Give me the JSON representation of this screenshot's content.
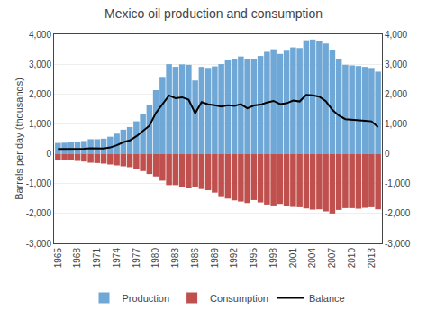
{
  "chart_data": {
    "type": "bar",
    "title": "Mexico oil production and consumption",
    "ylabel": "Barrels per day (thousands)",
    "x": [
      1965,
      1966,
      1967,
      1968,
      1969,
      1970,
      1971,
      1972,
      1973,
      1974,
      1975,
      1976,
      1977,
      1978,
      1979,
      1980,
      1981,
      1982,
      1983,
      1984,
      1985,
      1986,
      1987,
      1988,
      1989,
      1990,
      1991,
      1992,
      1993,
      1994,
      1995,
      1996,
      1997,
      1998,
      1999,
      2000,
      2001,
      2002,
      2003,
      2004,
      2005,
      2006,
      2007,
      2008,
      2009,
      2010,
      2011,
      2012,
      2013,
      2014
    ],
    "series": [
      {
        "name": "Production",
        "type": "bar",
        "color": "#6fa8d6",
        "values": [
          362,
          370,
          381,
          400,
          427,
          487,
          486,
          505,
          571,
          673,
          806,
          894,
          1086,
          1329,
          1618,
          2130,
          2574,
          3001,
          2912,
          2994,
          2978,
          2455,
          2910,
          2876,
          2926,
          3003,
          3127,
          3161,
          3257,
          3170,
          3167,
          3274,
          3413,
          3498,
          3343,
          3450,
          3560,
          3540,
          3800,
          3824,
          3770,
          3690,
          3471,
          3160,
          2979,
          2960,
          2939,
          2910,
          2875,
          2750
        ]
      },
      {
        "name": "Consumption",
        "type": "bar",
        "color": "#c0504d",
        "values": [
          -200,
          -210,
          -220,
          -240,
          -260,
          -300,
          -310,
          -330,
          -360,
          -390,
          -420,
          -450,
          -500,
          -580,
          -680,
          -760,
          -900,
          -1050,
          -1050,
          -1100,
          -1160,
          -1100,
          -1180,
          -1220,
          -1300,
          -1420,
          -1500,
          -1560,
          -1600,
          -1650,
          -1550,
          -1630,
          -1700,
          -1730,
          -1680,
          -1760,
          -1780,
          -1790,
          -1830,
          -1870,
          -1860,
          -1930,
          -2000,
          -1880,
          -1820,
          -1820,
          -1840,
          -1810,
          -1790,
          -1860
        ]
      },
      {
        "name": "Balance",
        "type": "line",
        "axis": "y2",
        "color": "#000000",
        "values": [
          160,
          160,
          160,
          160,
          165,
          185,
          175,
          175,
          210,
          285,
          385,
          445,
          585,
          750,
          940,
          1370,
          1674,
          1950,
          1860,
          1890,
          1810,
          1355,
          1730,
          1656,
          1626,
          1583,
          1627,
          1601,
          1657,
          1520,
          1617,
          1644,
          1713,
          1768,
          1663,
          1690,
          1780,
          1750,
          1970,
          1954,
          1910,
          1760,
          1471,
          1280,
          1159,
          1140,
          1099,
          1100,
          1085,
          890
        ]
      }
    ],
    "xlim": [
      1964.4,
      2014.6
    ],
    "xticks": [
      1965,
      1968,
      1971,
      1974,
      1977,
      1980,
      1983,
      1986,
      1989,
      1992,
      1995,
      1998,
      2001,
      2004,
      2007,
      2010,
      2013
    ],
    "ylim": [
      -3000,
      4000
    ],
    "yticks": [
      {
        "value": -3000,
        "label": "-3,000"
      },
      {
        "value": -2000,
        "label": "-2,000"
      },
      {
        "value": -1000,
        "label": "-1,000"
      },
      0,
      {
        "value": 1000,
        "label": "1,000"
      },
      {
        "value": 2000,
        "label": "2,000"
      },
      {
        "value": 3000,
        "label": "3,000"
      },
      {
        "value": 4000,
        "label": "4,000"
      }
    ],
    "y2lim": [
      -3000,
      4000
    ],
    "y2ticks": [
      {
        "value": -3000,
        "label": "-3,000"
      },
      {
        "value": -2000,
        "label": "-2,000"
      },
      {
        "value": -1000,
        "label": "-1,000"
      },
      0,
      {
        "value": 1000,
        "label": "1,000"
      },
      {
        "value": 2000,
        "label": "2,000"
      },
      {
        "value": 3000,
        "label": "3,000"
      },
      {
        "value": 4000,
        "label": "4,000"
      }
    ],
    "grid": true,
    "legend": "bottom"
  }
}
